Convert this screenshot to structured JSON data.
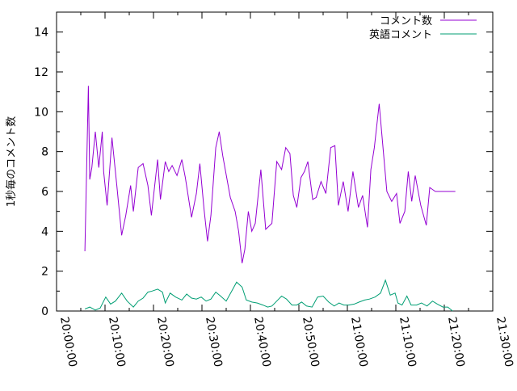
{
  "chart_data": {
    "type": "line",
    "title": "",
    "xlabel": "",
    "ylabel": "1秒毎のコメント数",
    "x_unit": "time (HH:MM:SS)",
    "xlim": [
      "20:00:00",
      "21:30:00"
    ],
    "ylim": [
      0,
      15
    ],
    "x_ticks": [
      "20:00:00",
      "20:10:00",
      "20:20:00",
      "20:30:00",
      "20:40:00",
      "20:50:00",
      "21:00:00",
      "21:10:00",
      "21:20:00",
      "21:30:00"
    ],
    "y_ticks": [
      "0",
      "2",
      "4",
      "6",
      "8",
      "10",
      "12",
      "14"
    ],
    "grid": false,
    "legend_position": "top-right",
    "series": [
      {
        "name": "コメント数",
        "color": "#9400d3",
        "x": [
          "20:05:51",
          "20:06:34",
          "20:06:51",
          "20:07:17",
          "20:08:00",
          "20:08:43",
          "20:09:26",
          "20:09:43",
          "20:10:26",
          "20:11:26",
          "20:12:26",
          "20:13:26",
          "20:14:17",
          "20:15:17",
          "20:15:51",
          "20:16:51",
          "20:17:51",
          "20:18:51",
          "20:19:34",
          "20:20:51",
          "20:21:26",
          "20:22:26",
          "20:23:09",
          "20:23:51",
          "20:24:51",
          "20:25:51",
          "20:26:34",
          "20:27:51",
          "20:28:51",
          "20:29:34",
          "20:30:26",
          "20:31:09",
          "20:31:51",
          "20:32:51",
          "20:33:34",
          "20:34:17",
          "20:35:51",
          "20:36:51",
          "20:37:34",
          "20:38:17",
          "20:38:51",
          "20:39:34",
          "20:40:17",
          "20:41:00",
          "20:42:09",
          "20:43:09",
          "20:44:26",
          "20:45:26",
          "20:46:26",
          "20:47:17",
          "20:48:09",
          "20:48:51",
          "20:49:34",
          "20:50:26",
          "20:51:09",
          "20:51:51",
          "20:52:51",
          "20:53:34",
          "20:54:34",
          "20:55:34",
          "20:56:34",
          "20:57:26",
          "20:58:09",
          "20:59:09",
          "21:00:09",
          "21:01:09",
          "21:02:17",
          "21:03:09",
          "21:04:09",
          "21:04:51",
          "21:05:34",
          "21:06:34",
          "21:07:17",
          "21:08:09",
          "21:09:09",
          "21:10:09",
          "21:10:51",
          "21:11:51",
          "21:12:34",
          "21:13:17",
          "21:14:00",
          "21:15:09",
          "21:16:17",
          "21:17:00",
          "21:18:09",
          "21:19:09",
          "21:20:17",
          "21:21:17",
          "21:22:17"
        ],
        "values": [
          3.0,
          11.3,
          6.6,
          7.2,
          9.0,
          7.2,
          9.0,
          7.0,
          5.3,
          8.7,
          6.3,
          3.8,
          4.8,
          6.3,
          5.0,
          7.2,
          7.4,
          6.3,
          4.8,
          7.6,
          5.6,
          7.5,
          7.0,
          7.3,
          6.8,
          7.6,
          6.7,
          4.7,
          5.9,
          7.4,
          5.1,
          3.5,
          4.8,
          8.2,
          9.0,
          7.8,
          5.7,
          5.0,
          4.0,
          2.4,
          3.1,
          5.0,
          4.0,
          4.4,
          7.1,
          4.1,
          4.4,
          7.5,
          7.1,
          8.2,
          7.9,
          5.8,
          5.2,
          6.7,
          7.0,
          7.5,
          5.6,
          5.7,
          6.5,
          5.9,
          8.2,
          8.3,
          5.3,
          6.5,
          5.0,
          7.0,
          5.2,
          5.8,
          4.2,
          7.1,
          8.2,
          10.4,
          8.4,
          6.0,
          5.5,
          5.9,
          4.4,
          5.0,
          7.0,
          5.5,
          6.8,
          5.3,
          4.3,
          6.2,
          6.0,
          6.0,
          6.0,
          6.0,
          6.0
        ]
      },
      {
        "name": "英語コメント",
        "color": "#009e73",
        "x": [
          "20:05:51",
          "20:06:51",
          "20:08:00",
          "20:09:00",
          "20:10:09",
          "20:11:09",
          "20:12:09",
          "20:13:26",
          "20:14:34",
          "20:15:51",
          "20:16:51",
          "20:17:51",
          "20:18:51",
          "20:19:43",
          "20:20:51",
          "20:21:51",
          "20:22:26",
          "20:23:26",
          "20:24:34",
          "20:25:51",
          "20:26:51",
          "20:27:51",
          "20:28:51",
          "20:29:51",
          "20:30:51",
          "20:31:51",
          "20:32:51",
          "20:33:51",
          "20:35:00",
          "20:36:09",
          "20:37:09",
          "20:38:17",
          "20:39:09",
          "20:40:17",
          "20:41:26",
          "20:42:34",
          "20:43:34",
          "20:44:26",
          "20:45:26",
          "20:46:26",
          "20:47:26",
          "20:48:34",
          "20:49:34",
          "20:50:34",
          "20:51:34",
          "20:52:43",
          "20:53:51",
          "20:55:00",
          "20:56:09",
          "20:57:17",
          "20:58:17",
          "20:59:17",
          "21:00:17",
          "21:01:26",
          "21:02:26",
          "21:03:34",
          "21:04:34",
          "21:05:43",
          "21:06:51",
          "21:07:51",
          "21:08:51",
          "21:09:51",
          "21:10:26",
          "21:11:17",
          "21:12:17",
          "21:13:09",
          "21:14:17",
          "21:15:17",
          "21:16:26",
          "21:17:34",
          "21:18:34",
          "21:19:43",
          "21:20:43",
          "21:21:43"
        ],
        "values": [
          0.1,
          0.2,
          0.05,
          0.15,
          0.7,
          0.35,
          0.5,
          0.9,
          0.5,
          0.2,
          0.5,
          0.65,
          0.95,
          1.0,
          1.1,
          0.95,
          0.4,
          0.9,
          0.7,
          0.55,
          0.85,
          0.65,
          0.6,
          0.7,
          0.5,
          0.6,
          0.95,
          0.75,
          0.5,
          1.0,
          1.45,
          1.2,
          0.55,
          0.45,
          0.4,
          0.3,
          0.2,
          0.25,
          0.5,
          0.75,
          0.6,
          0.3,
          0.3,
          0.45,
          0.25,
          0.2,
          0.7,
          0.75,
          0.45,
          0.25,
          0.4,
          0.3,
          0.3,
          0.35,
          0.45,
          0.55,
          0.6,
          0.7,
          0.9,
          1.55,
          0.8,
          0.9,
          0.4,
          0.3,
          0.75,
          0.3,
          0.3,
          0.4,
          0.25,
          0.5,
          0.35,
          0.2,
          0.2,
          0.0
        ]
      }
    ]
  }
}
